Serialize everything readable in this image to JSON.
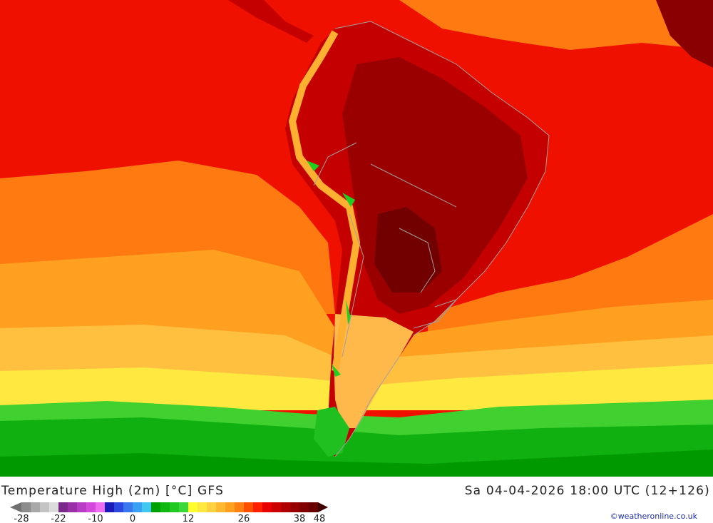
{
  "header": {
    "title": "Temperature High (2m) [°C] GFS",
    "valid_time": "Sa 04-04-2026 18:00 UTC (12+126)"
  },
  "legend": {
    "colors": [
      "#8c8c8c",
      "#a8a8a8",
      "#c4c4c4",
      "#dcdcdc",
      "#7a2a8a",
      "#9a30a8",
      "#b83cc6",
      "#d448dc",
      "#ee6cf0",
      "#1a1ab8",
      "#2a48e0",
      "#3a78f0",
      "#3aa0f4",
      "#40c8f0",
      "#00a000",
      "#10b810",
      "#20c820",
      "#3ad83a",
      "#ffff30",
      "#ffe840",
      "#ffd040",
      "#ffb830",
      "#ffa020",
      "#ff8010",
      "#ff5000",
      "#ff2000",
      "#e80000",
      "#cc0000",
      "#b00000",
      "#980000",
      "#800000",
      "#680000"
    ],
    "ticks": [
      {
        "label": "-28",
        "i": 0
      },
      {
        "label": "-22",
        "i": 4
      },
      {
        "label": "-10",
        "i": 8
      },
      {
        "label": "0",
        "i": 12
      },
      {
        "label": "12",
        "i": 18
      },
      {
        "label": "26",
        "i": 24
      },
      {
        "label": "38",
        "i": 30
      },
      {
        "label": "48",
        "i": 33
      }
    ]
  },
  "credit": "©weatheronline.co.uk"
}
